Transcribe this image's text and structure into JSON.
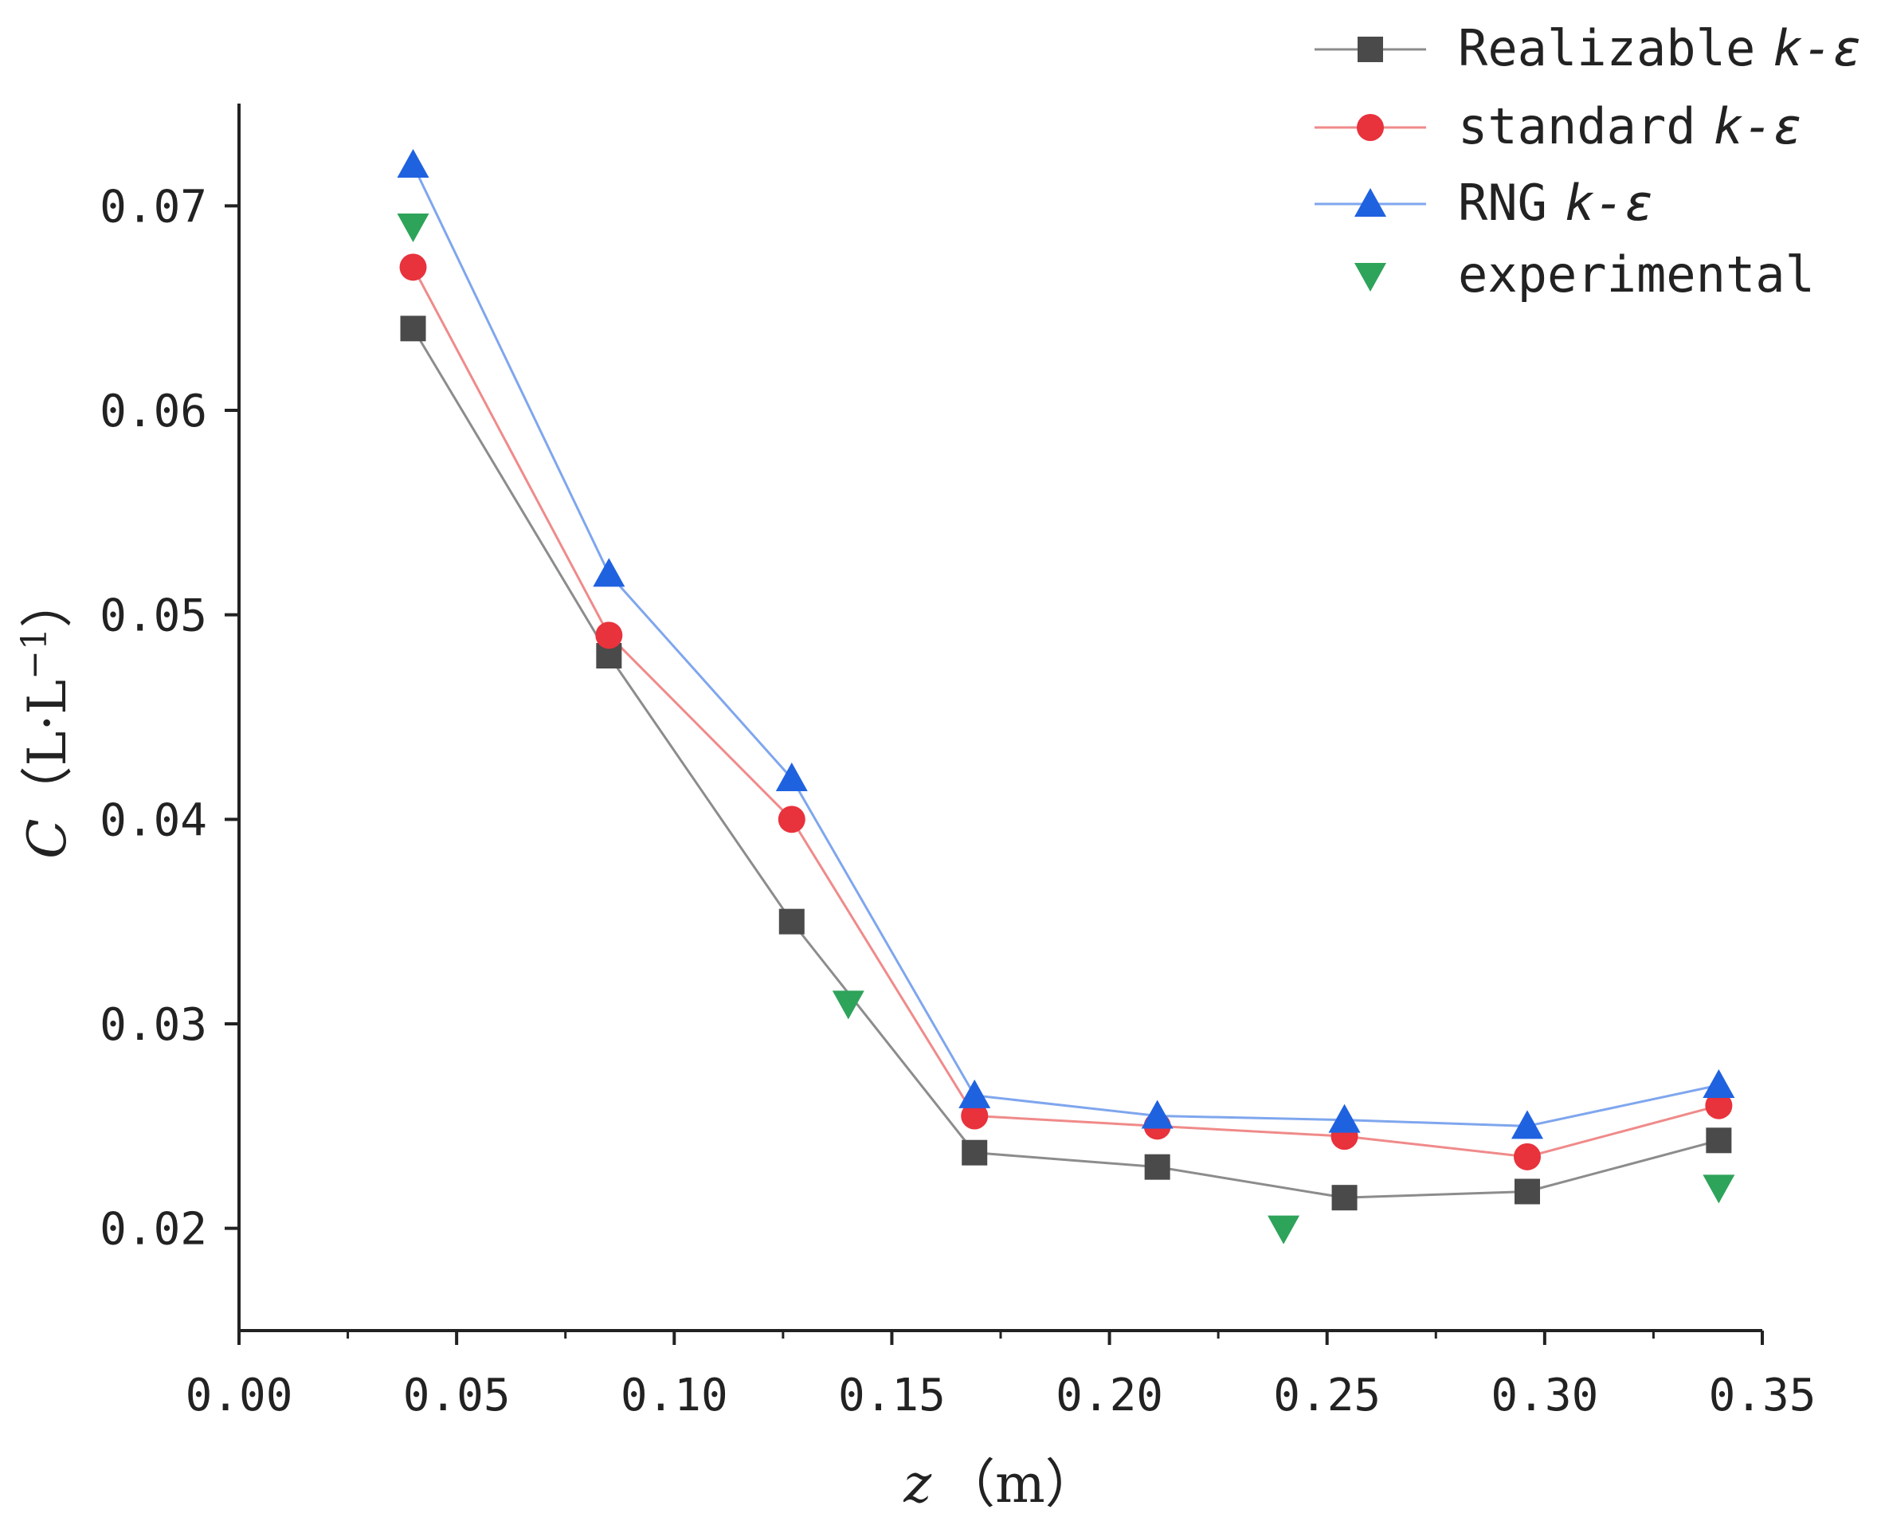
{
  "chart_data": {
    "type": "line",
    "title": "",
    "xlabel": {
      "var": "z",
      "unit": "（m）"
    },
    "ylabel": {
      "var": "C",
      "unit_open": "（L·L",
      "unit_sup": "−1",
      "unit_close": "）"
    },
    "xlim": [
      0.0,
      0.35
    ],
    "ylim": [
      0.015,
      0.075
    ],
    "x_ticks": [
      "0.00",
      "0.05",
      "0.10",
      "0.15",
      "0.20",
      "0.25",
      "0.30",
      "0.35"
    ],
    "x_tick_values": [
      0.0,
      0.05,
      0.1,
      0.15,
      0.2,
      0.25,
      0.3,
      0.35
    ],
    "y_ticks": [
      "0.02",
      "0.03",
      "0.04",
      "0.05",
      "0.06",
      "0.07"
    ],
    "y_tick_values": [
      0.02,
      0.03,
      0.04,
      0.05,
      0.06,
      0.07
    ],
    "grid": false,
    "legend_position": "top-right",
    "series": [
      {
        "name": "Realizable",
        "name_italic": "k-ε",
        "marker": "square",
        "color": "#4a4a4a",
        "line_color": "#8c8c8c",
        "line": true,
        "x": [
          0.04,
          0.085,
          0.127,
          0.169,
          0.211,
          0.254,
          0.296,
          0.34
        ],
        "y": [
          0.064,
          0.048,
          0.035,
          0.0237,
          0.023,
          0.0215,
          0.0218,
          0.0243
        ]
      },
      {
        "name": "standard",
        "name_italic": "k-ε",
        "marker": "circle",
        "color": "#e8323c",
        "line_color": "#f08a8a",
        "line": true,
        "x": [
          0.04,
          0.085,
          0.127,
          0.169,
          0.211,
          0.254,
          0.296,
          0.34
        ],
        "y": [
          0.067,
          0.049,
          0.04,
          0.0255,
          0.025,
          0.0245,
          0.0235,
          0.026
        ]
      },
      {
        "name": "RNG",
        "name_italic": "k-ε",
        "marker": "triangle-up",
        "color": "#1f62e0",
        "line_color": "#7fa6ee",
        "line": true,
        "x": [
          0.04,
          0.085,
          0.127,
          0.169,
          0.211,
          0.254,
          0.296,
          0.34
        ],
        "y": [
          0.072,
          0.052,
          0.042,
          0.0265,
          0.0255,
          0.0253,
          0.025,
          0.027
        ]
      },
      {
        "name": "experimental",
        "name_italic": "",
        "marker": "triangle-down",
        "color": "#2ea35a",
        "line_color": "",
        "line": false,
        "x": [
          0.04,
          0.14,
          0.24,
          0.34
        ],
        "y": [
          0.069,
          0.031,
          0.02,
          0.022
        ]
      }
    ]
  }
}
